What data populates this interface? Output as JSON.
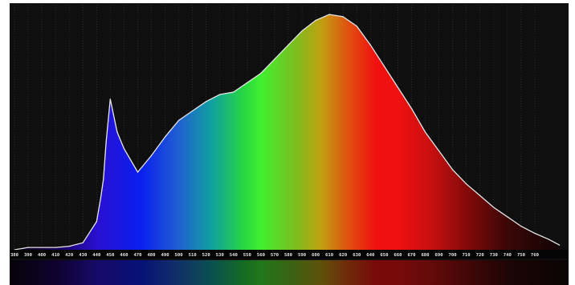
{
  "chart_data": {
    "type": "area",
    "title": "",
    "xlabel": "",
    "ylabel": "",
    "xlim": [
      380,
      780
    ],
    "ylim": [
      0,
      1
    ],
    "grid": true,
    "background": "#0f0f0f",
    "curve_color": "#e6e6e6",
    "tick_labels": [
      "380",
      "390",
      "400",
      "410",
      "420",
      "430",
      "440",
      "450",
      "460",
      "470",
      "480",
      "490",
      "500",
      "510",
      "520",
      "530",
      "540",
      "550",
      "560",
      "570",
      "580",
      "590",
      "600",
      "610",
      "620",
      "630",
      "640",
      "650",
      "660",
      "670",
      "680",
      "690",
      "700",
      "710",
      "720",
      "730",
      "740",
      "750",
      "760"
    ],
    "series": [
      {
        "x": [
          380,
          390,
          400,
          410,
          420,
          430,
          440,
          443,
          445,
          447,
          450,
          455,
          460,
          470,
          480,
          490,
          500,
          510,
          520,
          530,
          540,
          550,
          560,
          570,
          580,
          590,
          600,
          610,
          620,
          630,
          640,
          650,
          660,
          670,
          680,
          690,
          700,
          710,
          720,
          730,
          740,
          750,
          760,
          770,
          778
        ],
        "values": [
          0,
          0.01,
          0.01,
          0.01,
          0.015,
          0.03,
          0.12,
          0.22,
          0.3,
          0.46,
          0.64,
          0.5,
          0.43,
          0.33,
          0.4,
          0.48,
          0.55,
          0.59,
          0.63,
          0.66,
          0.67,
          0.71,
          0.75,
          0.81,
          0.87,
          0.93,
          0.975,
          1.0,
          0.99,
          0.95,
          0.87,
          0.78,
          0.69,
          0.6,
          0.5,
          0.42,
          0.34,
          0.28,
          0.23,
          0.18,
          0.14,
          0.1,
          0.07,
          0.045,
          0.02
        ]
      }
    ]
  }
}
